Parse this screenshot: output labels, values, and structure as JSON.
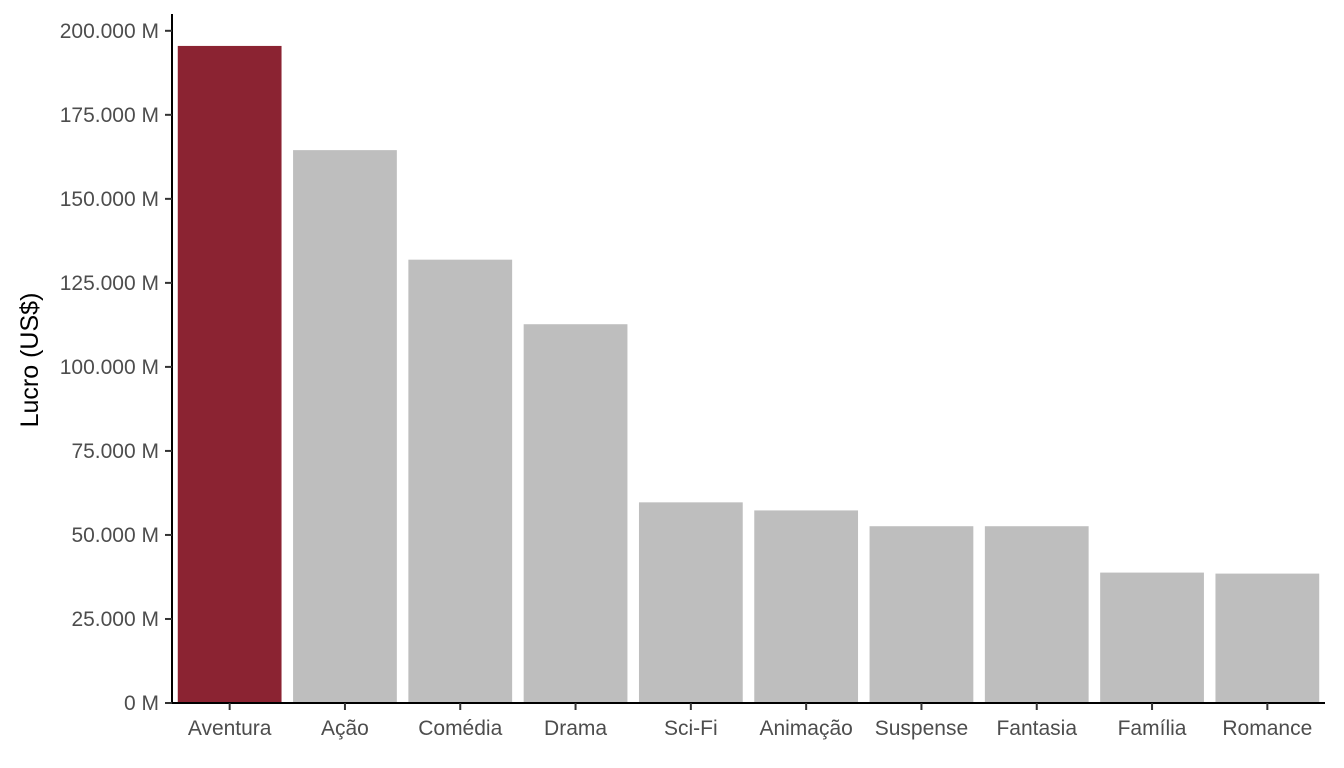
{
  "chart_data": {
    "type": "bar",
    "title": "",
    "xlabel": "",
    "ylabel": "Lucro (US$)",
    "categories": [
      "Aventura",
      "Ação",
      "Comédia",
      "Drama",
      "Sci-Fi",
      "Animação",
      "Suspense",
      "Fantasia",
      "Família",
      "Romance"
    ],
    "values": [
      195500,
      164500,
      131900,
      112700,
      59700,
      57300,
      52600,
      52600,
      38800,
      38500
    ],
    "value_unit": "M",
    "ylim": [
      0,
      205000
    ],
    "yticks": [
      0,
      25000,
      50000,
      75000,
      100000,
      125000,
      150000,
      175000,
      200000
    ],
    "ytick_labels": [
      "0 M",
      "25.000 M",
      "50.000 M",
      "75.000 M",
      "100.000 M",
      "125.000 M",
      "150.000 M",
      "175.000 M",
      "200.000 M"
    ],
    "highlight_index": 0,
    "colors": {
      "highlight": "#8b2332",
      "default": "#bebebe",
      "axis": "#000000",
      "tick_text": "#4d4d4d"
    },
    "grid": false,
    "legend": "none"
  }
}
